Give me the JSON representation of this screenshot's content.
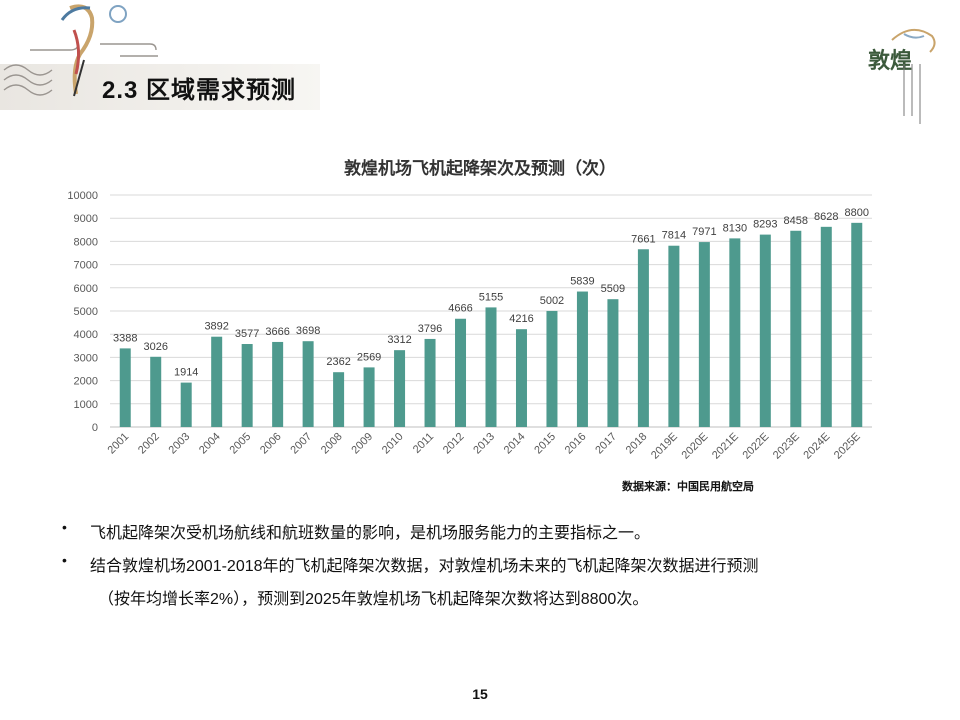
{
  "slide": {
    "section_title": "2.3 区域需求预测",
    "logo_text": "敦煌",
    "page_number": "15",
    "colors": {
      "bar": "#4e9a8e",
      "grid": "#d9d9d9",
      "axis": "#bfbfbf"
    }
  },
  "chart_data": {
    "type": "bar",
    "title": "敦煌机场飞机起降架次及预测（次）",
    "xlabel": "",
    "ylabel": "",
    "ylim": [
      0,
      10000
    ],
    "yticks": [
      0,
      1000,
      2000,
      3000,
      4000,
      5000,
      6000,
      7000,
      8000,
      9000,
      10000
    ],
    "grid": true,
    "categories": [
      "2001",
      "2002",
      "2003",
      "2004",
      "2005",
      "2006",
      "2007",
      "2008",
      "2009",
      "2010",
      "2011",
      "2012",
      "2013",
      "2014",
      "2015",
      "2016",
      "2017",
      "2018",
      "2019E",
      "2020E",
      "2021E",
      "2022E",
      "2023E",
      "2024E",
      "2025E"
    ],
    "values": [
      3388,
      3026,
      1914,
      3892,
      3577,
      3666,
      3698,
      2362,
      2569,
      3312,
      3796,
      4666,
      5155,
      4216,
      5002,
      5839,
      5509,
      7661,
      7814,
      7971,
      8130,
      8293,
      8458,
      8628,
      8800
    ],
    "source": "数据来源：中国民用航空局"
  },
  "bullets": {
    "item1": "飞机起降架次受机场航线和航班数量的影响，是机场服务能力的主要指标之一。",
    "item2_line1": "结合敦煌机场2001-2018年的飞机起降架次数据，对敦煌机场未来的飞机起降架次数据进行预测",
    "item2_line2": "（按年均增长率2%），预测到2025年敦煌机场飞机起降架次数将达到8800次。",
    "marker": "•"
  }
}
